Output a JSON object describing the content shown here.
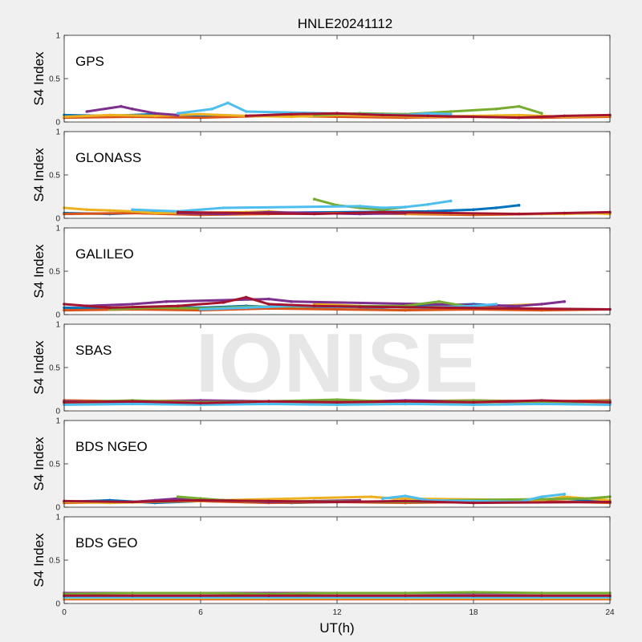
{
  "figure": {
    "title": "HNLE20241112",
    "xlabel": "UT(h)",
    "watermark": "IONISE",
    "background_color": "#f0f0f0",
    "axes_color": "#ffffff"
  },
  "series_colors": [
    "#0072BD",
    "#D95319",
    "#EDB120",
    "#7E2F8E",
    "#77AC30",
    "#4DBEEE",
    "#A2142F"
  ],
  "chart_data": [
    {
      "type": "scatter",
      "title": "GPS",
      "ylabel": "S4 Index",
      "xlim": [
        0,
        24
      ],
      "ylim": [
        0,
        1
      ],
      "xticks": [
        0,
        6,
        12,
        18,
        24
      ],
      "yticks": [
        0,
        0.5,
        1
      ],
      "ytick_labels": [
        "0",
        "0.5",
        "1"
      ],
      "grid": false,
      "series": [
        {
          "x": [
            0,
            2,
            4,
            6,
            8,
            10,
            11,
            13,
            15,
            16
          ],
          "y": [
            0.08,
            0.07,
            0.09,
            0.06,
            0.07,
            0.08,
            0.1,
            0.09,
            0.08,
            0.07
          ]
        },
        {
          "x": [
            0,
            3,
            6,
            9,
            12,
            15,
            18,
            21,
            24
          ],
          "y": [
            0.05,
            0.06,
            0.05,
            0.07,
            0.06,
            0.05,
            0.06,
            0.05,
            0.06
          ]
        },
        {
          "x": [
            0,
            2,
            4,
            6,
            8,
            10,
            12,
            14,
            16,
            18,
            20,
            22,
            24
          ],
          "y": [
            0.06,
            0.08,
            0.07,
            0.09,
            0.07,
            0.06,
            0.08,
            0.07,
            0.06,
            0.07,
            0.08,
            0.06,
            0.07
          ]
        },
        {
          "x": [
            1,
            2.5,
            3,
            4,
            5
          ],
          "y": [
            0.12,
            0.18,
            0.15,
            0.1,
            0.08
          ]
        },
        {
          "x": [
            11,
            13,
            15,
            17,
            19,
            20,
            21
          ],
          "y": [
            0.08,
            0.1,
            0.09,
            0.12,
            0.15,
            0.18,
            0.1
          ]
        },
        {
          "x": [
            5,
            6.5,
            7.2,
            8,
            15,
            16,
            17
          ],
          "y": [
            0.1,
            0.15,
            0.22,
            0.12,
            0.08,
            0.1,
            0.09
          ]
        },
        {
          "x": [
            8,
            10,
            12,
            14,
            16,
            18,
            20,
            22,
            24
          ],
          "y": [
            0.07,
            0.09,
            0.1,
            0.08,
            0.07,
            0.06,
            0.05,
            0.07,
            0.08
          ]
        }
      ]
    },
    {
      "type": "scatter",
      "title": "GLONASS",
      "ylabel": "S4 Index",
      "xlim": [
        0,
        24
      ],
      "ylim": [
        0,
        1
      ],
      "xticks": [
        0,
        6,
        12,
        18,
        24
      ],
      "yticks": [
        0,
        0.5,
        1
      ],
      "ytick_labels": [
        "0",
        "0.5",
        "1"
      ],
      "grid": false,
      "series": [
        {
          "x": [
            0,
            2,
            4,
            6,
            8,
            16,
            18,
            19,
            20
          ],
          "y": [
            0.06,
            0.05,
            0.07,
            0.05,
            0.06,
            0.08,
            0.1,
            0.12,
            0.15
          ]
        },
        {
          "x": [
            0,
            3,
            6,
            9,
            12,
            15,
            18,
            21,
            24
          ],
          "y": [
            0.05,
            0.06,
            0.04,
            0.05,
            0.06,
            0.05,
            0.04,
            0.05,
            0.06
          ]
        },
        {
          "x": [
            0,
            1,
            2,
            3,
            4,
            8,
            9,
            10,
            22,
            23,
            24
          ],
          "y": [
            0.12,
            0.1,
            0.09,
            0.08,
            0.06,
            0.07,
            0.08,
            0.06,
            0.05,
            0.06,
            0.05
          ]
        },
        {
          "x": [
            5,
            7,
            9,
            11,
            13,
            15
          ],
          "y": [
            0.06,
            0.05,
            0.07,
            0.06,
            0.05,
            0.06
          ]
        },
        {
          "x": [
            11,
            12,
            13,
            14,
            15
          ],
          "y": [
            0.22,
            0.15,
            0.12,
            0.1,
            0.13
          ]
        },
        {
          "x": [
            3,
            5,
            7,
            13,
            14,
            15,
            16,
            17
          ],
          "y": [
            0.1,
            0.08,
            0.12,
            0.14,
            0.12,
            0.13,
            0.16,
            0.2
          ]
        },
        {
          "x": [
            5,
            8,
            11,
            14,
            17,
            20,
            22,
            24
          ],
          "y": [
            0.07,
            0.06,
            0.05,
            0.07,
            0.06,
            0.05,
            0.06,
            0.07
          ]
        }
      ]
    },
    {
      "type": "scatter",
      "title": "GALILEO",
      "ylabel": "S4 Index",
      "xlim": [
        0,
        24
      ],
      "ylim": [
        0,
        1
      ],
      "xticks": [
        0,
        6,
        12,
        18,
        24
      ],
      "yticks": [
        0,
        0.5,
        1
      ],
      "ytick_labels": [
        "0",
        "0.5",
        "1"
      ],
      "grid": false,
      "series": [
        {
          "x": [
            0,
            2,
            4,
            6,
            8,
            10,
            12,
            14,
            16,
            18,
            20
          ],
          "y": [
            0.08,
            0.07,
            0.09,
            0.08,
            0.1,
            0.08,
            0.09,
            0.08,
            0.1,
            0.12,
            0.09
          ]
        },
        {
          "x": [
            0,
            3,
            6,
            9,
            12,
            15,
            18,
            21,
            24
          ],
          "y": [
            0.05,
            0.06,
            0.05,
            0.07,
            0.06,
            0.05,
            0.06,
            0.05,
            0.06
          ]
        },
        {
          "x": [
            11,
            13,
            15,
            17,
            19,
            21
          ],
          "y": [
            0.12,
            0.1,
            0.08,
            0.09,
            0.1,
            0.12
          ]
        },
        {
          "x": [
            1,
            3,
            4.5,
            9,
            10,
            20,
            21,
            22
          ],
          "y": [
            0.1,
            0.12,
            0.15,
            0.18,
            0.15,
            0.1,
            0.12,
            0.15
          ]
        },
        {
          "x": [
            2,
            4,
            6,
            8,
            15,
            16.5,
            18
          ],
          "y": [
            0.06,
            0.08,
            0.07,
            0.09,
            0.1,
            0.15,
            0.08
          ]
        },
        {
          "x": [
            6,
            8,
            10,
            12,
            16,
            18,
            19
          ],
          "y": [
            0.06,
            0.08,
            0.1,
            0.09,
            0.08,
            0.1,
            0.12
          ]
        },
        {
          "x": [
            0,
            2,
            5,
            7,
            8,
            9,
            11,
            13,
            24
          ],
          "y": [
            0.12,
            0.08,
            0.1,
            0.14,
            0.2,
            0.12,
            0.1,
            0.09,
            0.06
          ]
        }
      ]
    },
    {
      "type": "scatter",
      "title": "SBAS",
      "ylabel": "S4 Index",
      "xlim": [
        0,
        24
      ],
      "ylim": [
        0,
        1
      ],
      "xticks": [
        0,
        6,
        12,
        18,
        24
      ],
      "yticks": [
        0,
        0.5,
        1
      ],
      "ytick_labels": [
        "0",
        "0.5",
        "1"
      ],
      "grid": false,
      "series": [
        {
          "x": [
            0,
            3,
            6,
            9,
            12,
            15,
            18,
            21,
            24
          ],
          "y": [
            0.1,
            0.09,
            0.11,
            0.1,
            0.09,
            0.1,
            0.11,
            0.1,
            0.09
          ]
        },
        {
          "x": [
            0,
            3,
            6,
            9,
            12,
            15,
            18,
            21,
            24
          ],
          "y": [
            0.12,
            0.11,
            0.12,
            0.1,
            0.12,
            0.11,
            0.12,
            0.11,
            0.12
          ]
        },
        {
          "x": [
            0,
            3,
            6,
            9,
            12,
            15,
            18,
            21,
            24
          ],
          "y": [
            0.08,
            0.09,
            0.08,
            0.1,
            0.09,
            0.08,
            0.09,
            0.1,
            0.08
          ]
        },
        {
          "x": [
            0,
            3,
            6,
            9,
            12,
            15,
            18,
            21,
            24
          ],
          "y": [
            0.11,
            0.1,
            0.12,
            0.11,
            0.1,
            0.12,
            0.11,
            0.1,
            0.11
          ]
        },
        {
          "x": [
            0,
            3,
            6,
            9,
            12,
            15,
            18,
            21,
            24
          ],
          "y": [
            0.1,
            0.12,
            0.1,
            0.11,
            0.13,
            0.1,
            0.12,
            0.1,
            0.11
          ]
        },
        {
          "x": [
            0,
            3,
            6,
            9,
            12,
            15,
            18,
            21,
            24
          ],
          "y": [
            0.07,
            0.08,
            0.07,
            0.08,
            0.07,
            0.08,
            0.07,
            0.08,
            0.07
          ]
        },
        {
          "x": [
            0,
            3,
            6,
            9,
            12,
            15,
            18,
            21,
            24
          ],
          "y": [
            0.1,
            0.11,
            0.09,
            0.11,
            0.1,
            0.11,
            0.1,
            0.12,
            0.1
          ]
        }
      ]
    },
    {
      "type": "scatter",
      "title": "BDS NGEO",
      "ylabel": "S4 Index",
      "xlim": [
        0,
        24
      ],
      "ylim": [
        0,
        1
      ],
      "xticks": [
        0,
        6,
        12,
        18,
        24
      ],
      "yticks": [
        0,
        0.5,
        1
      ],
      "ytick_labels": [
        "0",
        "0.5",
        "1"
      ],
      "grid": false,
      "series": [
        {
          "x": [
            0,
            2,
            4,
            6,
            8,
            10,
            12,
            16,
            18,
            20,
            22,
            24
          ],
          "y": [
            0.06,
            0.08,
            0.05,
            0.07,
            0.06,
            0.05,
            0.06,
            0.07,
            0.06,
            0.08,
            0.1,
            0.06
          ]
        },
        {
          "x": [
            0,
            3,
            6,
            9,
            12,
            15,
            18,
            21,
            24
          ],
          "y": [
            0.05,
            0.06,
            0.07,
            0.05,
            0.06,
            0.05,
            0.06,
            0.07,
            0.05
          ]
        },
        {
          "x": [
            0,
            2,
            13.5,
            14.5,
            21,
            22,
            23,
            24
          ],
          "y": [
            0.06,
            0.05,
            0.12,
            0.1,
            0.08,
            0.12,
            0.1,
            0.08
          ]
        },
        {
          "x": [
            3,
            4,
            5,
            7,
            9,
            11,
            13
          ],
          "y": [
            0.06,
            0.08,
            0.1,
            0.08,
            0.06,
            0.07,
            0.08
          ]
        },
        {
          "x": [
            5,
            6,
            7,
            8,
            16,
            17,
            23,
            24
          ],
          "y": [
            0.12,
            0.1,
            0.08,
            0.07,
            0.06,
            0.08,
            0.1,
            0.12
          ]
        },
        {
          "x": [
            14,
            15,
            16,
            20,
            21,
            22
          ],
          "y": [
            0.1,
            0.13,
            0.08,
            0.06,
            0.12,
            0.15
          ]
        },
        {
          "x": [
            0,
            3,
            6,
            9,
            12,
            15,
            18,
            24
          ],
          "y": [
            0.07,
            0.06,
            0.08,
            0.07,
            0.06,
            0.07,
            0.05,
            0.06
          ]
        }
      ]
    },
    {
      "type": "scatter",
      "title": "BDS GEO",
      "ylabel": "S4 Index",
      "xlim": [
        0,
        24
      ],
      "ylim": [
        0,
        1
      ],
      "xticks": [
        0,
        6,
        12,
        18,
        24
      ],
      "yticks": [
        0,
        0.5,
        1
      ],
      "ytick_labels": [
        "0",
        "0.5",
        "1"
      ],
      "grid": false,
      "series": [
        {
          "x": [
            0,
            3,
            6,
            9,
            12,
            15,
            18,
            21,
            24
          ],
          "y": [
            0.08,
            0.08,
            0.08,
            0.08,
            0.08,
            0.08,
            0.08,
            0.08,
            0.08
          ]
        },
        {
          "x": [
            0,
            3,
            6,
            9,
            12,
            15,
            18,
            21,
            24
          ],
          "y": [
            0.05,
            0.05,
            0.05,
            0.05,
            0.05,
            0.05,
            0.05,
            0.05,
            0.05
          ]
        },
        {
          "x": [
            0,
            3,
            6,
            9,
            12,
            15,
            18,
            21,
            24
          ],
          "y": [
            0.06,
            0.06,
            0.06,
            0.06,
            0.06,
            0.06,
            0.06,
            0.06,
            0.06
          ]
        },
        {
          "x": [
            0,
            3,
            6,
            9,
            12,
            15,
            18,
            21,
            24
          ],
          "y": [
            0.12,
            0.12,
            0.12,
            0.12,
            0.12,
            0.12,
            0.12,
            0.12,
            0.12
          ]
        },
        {
          "x": [
            0,
            3,
            6,
            9,
            12,
            15,
            18,
            21,
            24
          ],
          "y": [
            0.11,
            0.12,
            0.12,
            0.11,
            0.12,
            0.12,
            0.13,
            0.12,
            0.12
          ]
        },
        {
          "x": [
            0,
            3,
            6,
            9,
            12,
            15,
            18,
            21,
            24
          ],
          "y": [
            0.07,
            0.07,
            0.07,
            0.07,
            0.07,
            0.07,
            0.07,
            0.07,
            0.07
          ]
        },
        {
          "x": [
            0,
            3,
            6,
            9,
            12,
            15,
            18,
            21,
            24
          ],
          "y": [
            0.09,
            0.09,
            0.09,
            0.09,
            0.09,
            0.09,
            0.09,
            0.09,
            0.09
          ]
        }
      ]
    }
  ]
}
